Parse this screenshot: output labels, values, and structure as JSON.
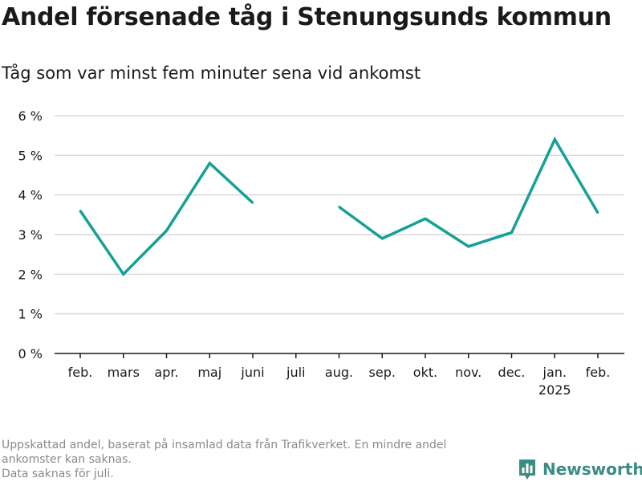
{
  "title": "Andel försenade tåg i Stenungsunds kommun",
  "subtitle": "Tåg som var minst fem minuter sena vid ankomst",
  "footnote": {
    "line1": "Uppskattad andel, baserat på insamlad data från Trafikverket. En mindre andel",
    "line2": "ankomster kan saknas.",
    "line3": "Data saknas för juli."
  },
  "brand": {
    "name": "Newsworthy",
    "icon": "bar-chart-logo-icon"
  },
  "colors": {
    "line": "#16a096",
    "grid": "#d9d9d9",
    "axis": "#1a1a1a",
    "text": "#1a1a1a",
    "muted": "#8a8a8a",
    "brand": "#3c8c84"
  },
  "chart_data": {
    "type": "line",
    "categories": [
      "feb.",
      "mars",
      "apr.",
      "maj",
      "juni",
      "juli",
      "aug.",
      "sep.",
      "okt.",
      "nov.",
      "dec.",
      "jan.",
      "feb."
    ],
    "category_sublabels": [
      "",
      "",
      "",
      "",
      "",
      "",
      "",
      "",
      "",
      "",
      "",
      "2025",
      ""
    ],
    "series": [
      {
        "values": [
          3.6,
          2.0,
          3.1,
          4.8,
          3.8,
          null,
          3.7,
          2.9,
          3.4,
          2.7,
          3.05,
          5.4,
          3.55
        ]
      }
    ],
    "y_ticks": [
      0,
      1,
      2,
      3,
      4,
      5,
      6
    ],
    "y_tick_labels": [
      "0 %",
      "1 %",
      "2 %",
      "3 %",
      "4 %",
      "5 %",
      "6 %"
    ],
    "ylim": [
      0,
      6
    ],
    "grid": true,
    "legend": "none"
  }
}
